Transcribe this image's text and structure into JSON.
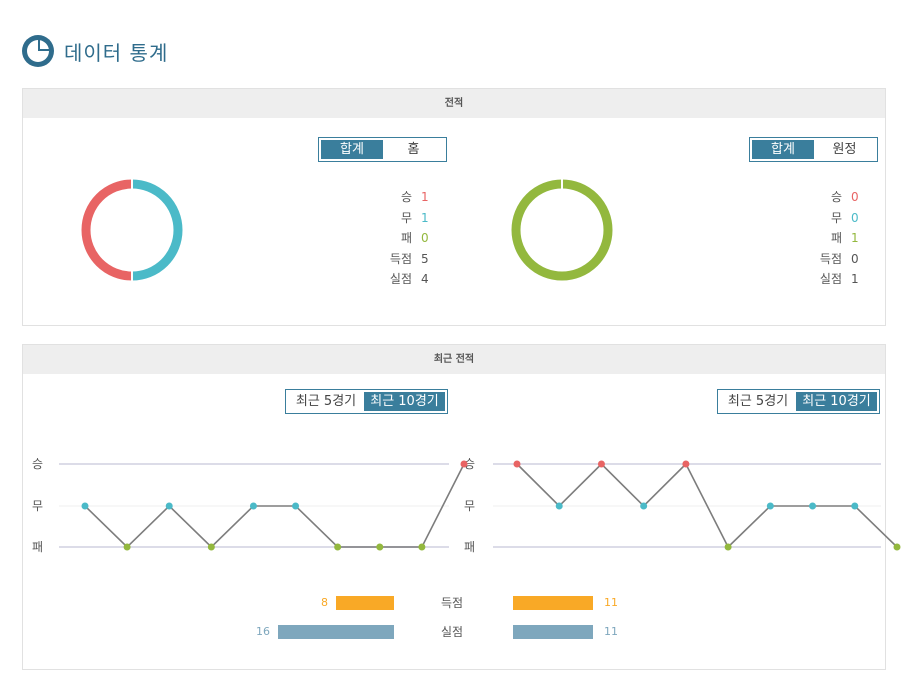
{
  "page_title": "데이터 통계",
  "colors": {
    "win": "#e86464",
    "draw": "#4bbac8",
    "loss": "#93b83e",
    "accent": "#3a7e9c",
    "scored": "#f9a926",
    "conceded": "#7ea7bd"
  },
  "record": {
    "header": "전적",
    "home": {
      "tabs": [
        {
          "label": "합계",
          "active": true
        },
        {
          "label": "홈",
          "active": false
        }
      ],
      "stats": [
        {
          "label": "승",
          "value": "1",
          "color": "#e86464"
        },
        {
          "label": "무",
          "value": "1",
          "color": "#4bbac8"
        },
        {
          "label": "패",
          "value": "0",
          "color": "#93b83e"
        },
        {
          "label": "득점",
          "value": "5",
          "color": "#555555"
        },
        {
          "label": "실점",
          "value": "4",
          "color": "#555555"
        }
      ]
    },
    "away": {
      "tabs": [
        {
          "label": "합계",
          "active": true
        },
        {
          "label": "원정",
          "active": false
        }
      ],
      "stats": [
        {
          "label": "승",
          "value": "0",
          "color": "#e86464"
        },
        {
          "label": "무",
          "value": "0",
          "color": "#4bbac8"
        },
        {
          "label": "패",
          "value": "1",
          "color": "#93b83e"
        },
        {
          "label": "득점",
          "value": "0",
          "color": "#555555"
        },
        {
          "label": "실점",
          "value": "1",
          "color": "#555555"
        }
      ]
    }
  },
  "recent": {
    "header": "최근 전적",
    "y_labels": [
      "승",
      "무",
      "패"
    ],
    "home": {
      "tabs": [
        {
          "label": "최근 5경기",
          "active": false
        },
        {
          "label": "최근 10경기",
          "active": true
        }
      ],
      "results": [
        "무",
        "패",
        "무",
        "패",
        "무",
        "무",
        "패",
        "패",
        "패",
        "승"
      ]
    },
    "away": {
      "tabs": [
        {
          "label": "최근 5경기",
          "active": false
        },
        {
          "label": "최근 10경기",
          "active": true
        }
      ],
      "results": [
        "승",
        "무",
        "승",
        "무",
        "승",
        "패",
        "무",
        "무",
        "무",
        "패"
      ]
    },
    "goals": {
      "scored_label": "득점",
      "conceded_label": "실점",
      "home_scored": 8,
      "home_conceded": 16,
      "away_scored": 11,
      "away_conceded": 11
    }
  }
}
